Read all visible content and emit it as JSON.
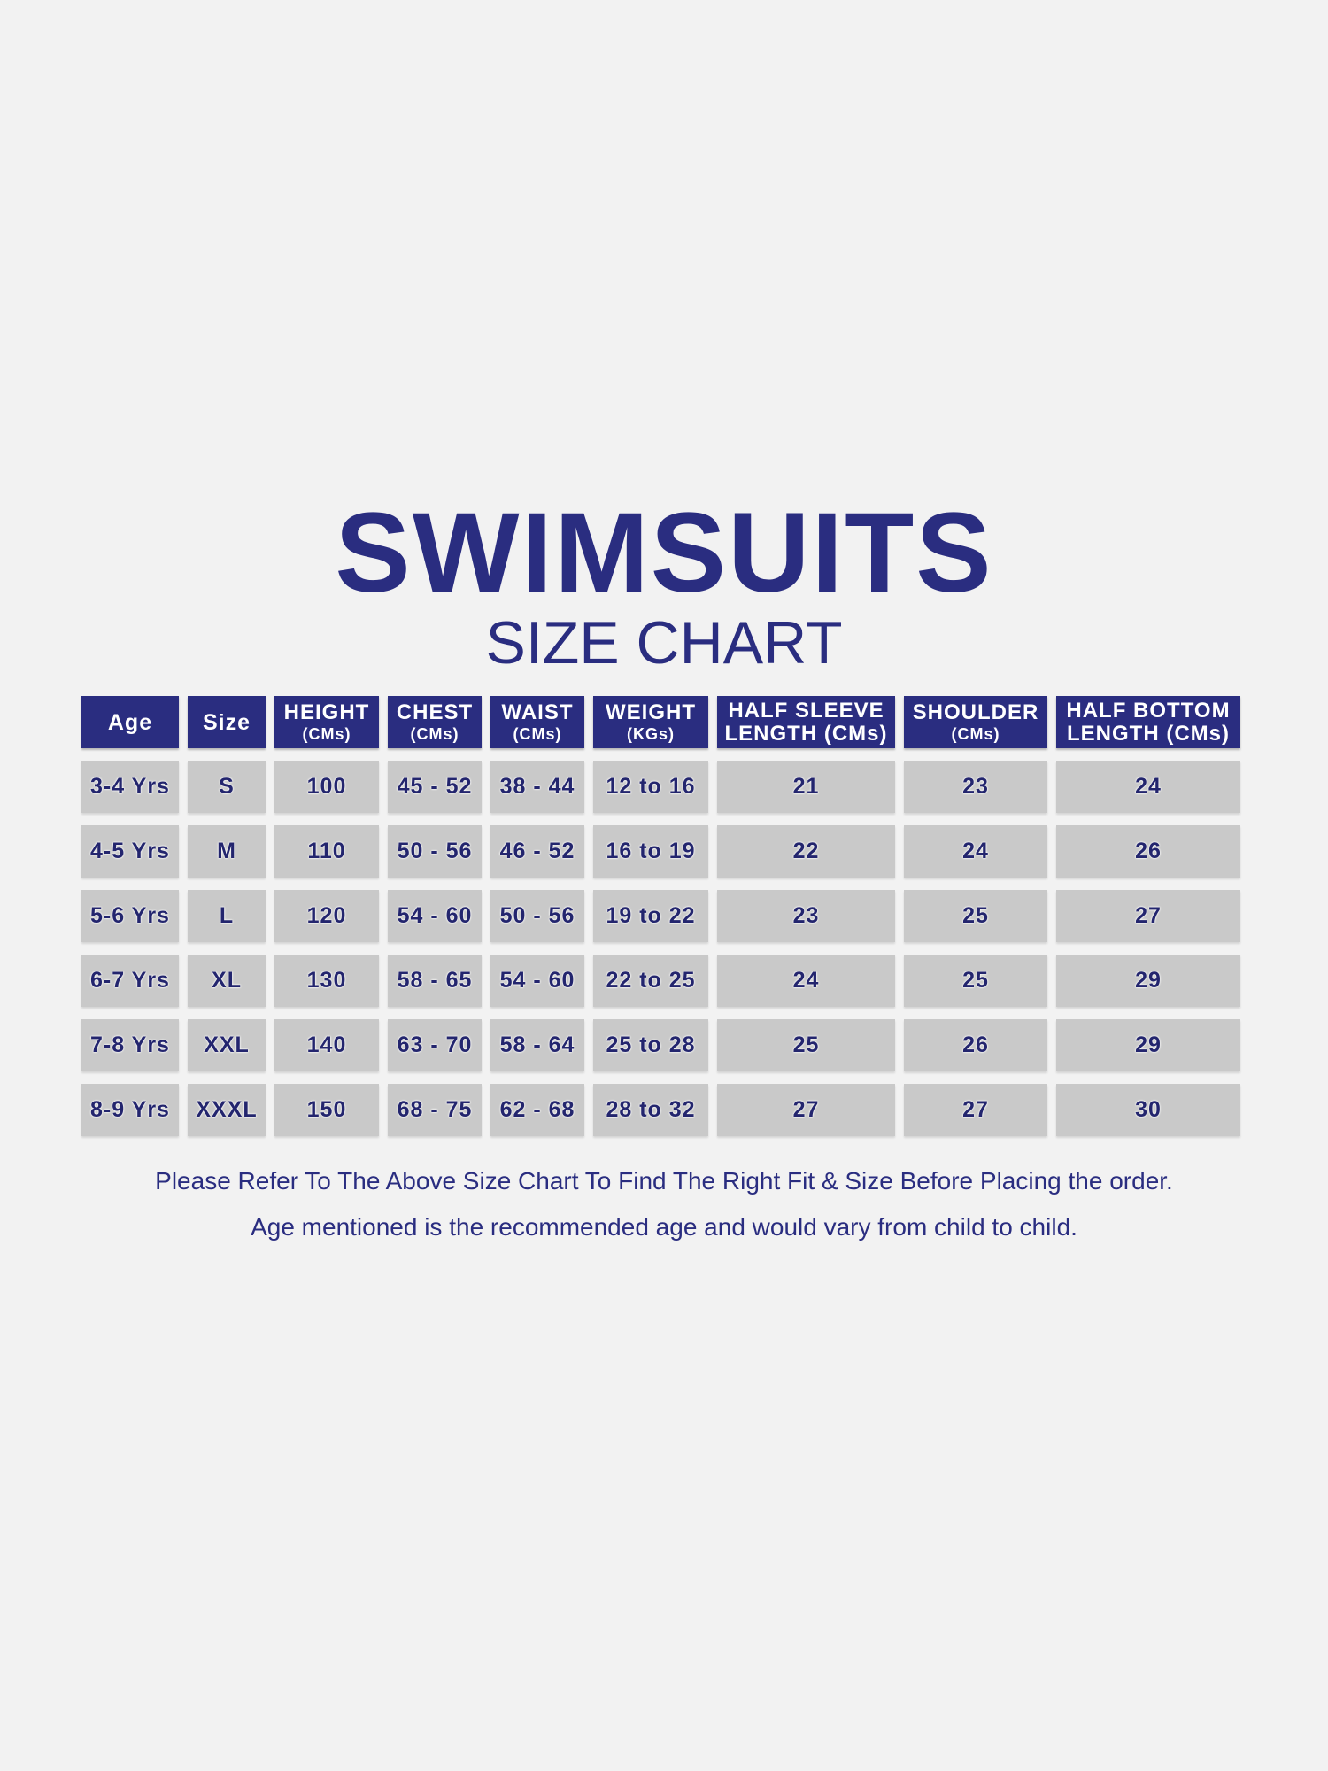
{
  "title": "SWIMSUITS",
  "subtitle": "SIZE CHART",
  "colors": {
    "header_bg": "#2a2d80",
    "cell_bg": "#c9c9c9",
    "text": "#2a2d80",
    "background": "#f2f2f2"
  },
  "table": {
    "headers": [
      {
        "line1": "Age",
        "line2": ""
      },
      {
        "line1": "Size",
        "line2": ""
      },
      {
        "line1": "HEIGHT",
        "line2": "(CMs)"
      },
      {
        "line1": "CHEST",
        "line2": "(CMs)"
      },
      {
        "line1": "WAIST",
        "line2": "(CMs)"
      },
      {
        "line1": "WEIGHT",
        "line2": "(KGs)"
      },
      {
        "line1": "HALF SLEEVE",
        "line2": "LENGTH  (CMs)"
      },
      {
        "line1": "SHOULDER",
        "line2": "(CMs)"
      },
      {
        "line1": "HALF BOTTOM",
        "line2": "LENGTH    (CMs)"
      }
    ],
    "rows": [
      [
        "3-4 Yrs",
        "S",
        "100",
        "45 - 52",
        "38 - 44",
        "12 to 16",
        "21",
        "23",
        "24"
      ],
      [
        "4-5 Yrs",
        "M",
        "110",
        "50 - 56",
        "46 - 52",
        "16 to 19",
        "22",
        "24",
        "26"
      ],
      [
        "5-6 Yrs",
        "L",
        "120",
        "54 - 60",
        "50 - 56",
        "19 to 22",
        "23",
        "25",
        "27"
      ],
      [
        "6-7 Yrs",
        "XL",
        "130",
        "58 - 65",
        "54 - 60",
        "22 to 25",
        "24",
        "25",
        "29"
      ],
      [
        "7-8 Yrs",
        "XXL",
        "140",
        "63 - 70",
        "58 - 64",
        "25 to 28",
        "25",
        "26",
        "29"
      ],
      [
        "8-9 Yrs",
        "XXXL",
        "150",
        "68 - 75",
        "62 - 68",
        "28 to 32",
        "27",
        "27",
        "30"
      ]
    ]
  },
  "notes": [
    "Please  Refer To The Above Size Chart To Find The Right Fit & Size Before Placing the order.",
    "Age mentioned is the recommended age and would vary from child to child."
  ]
}
